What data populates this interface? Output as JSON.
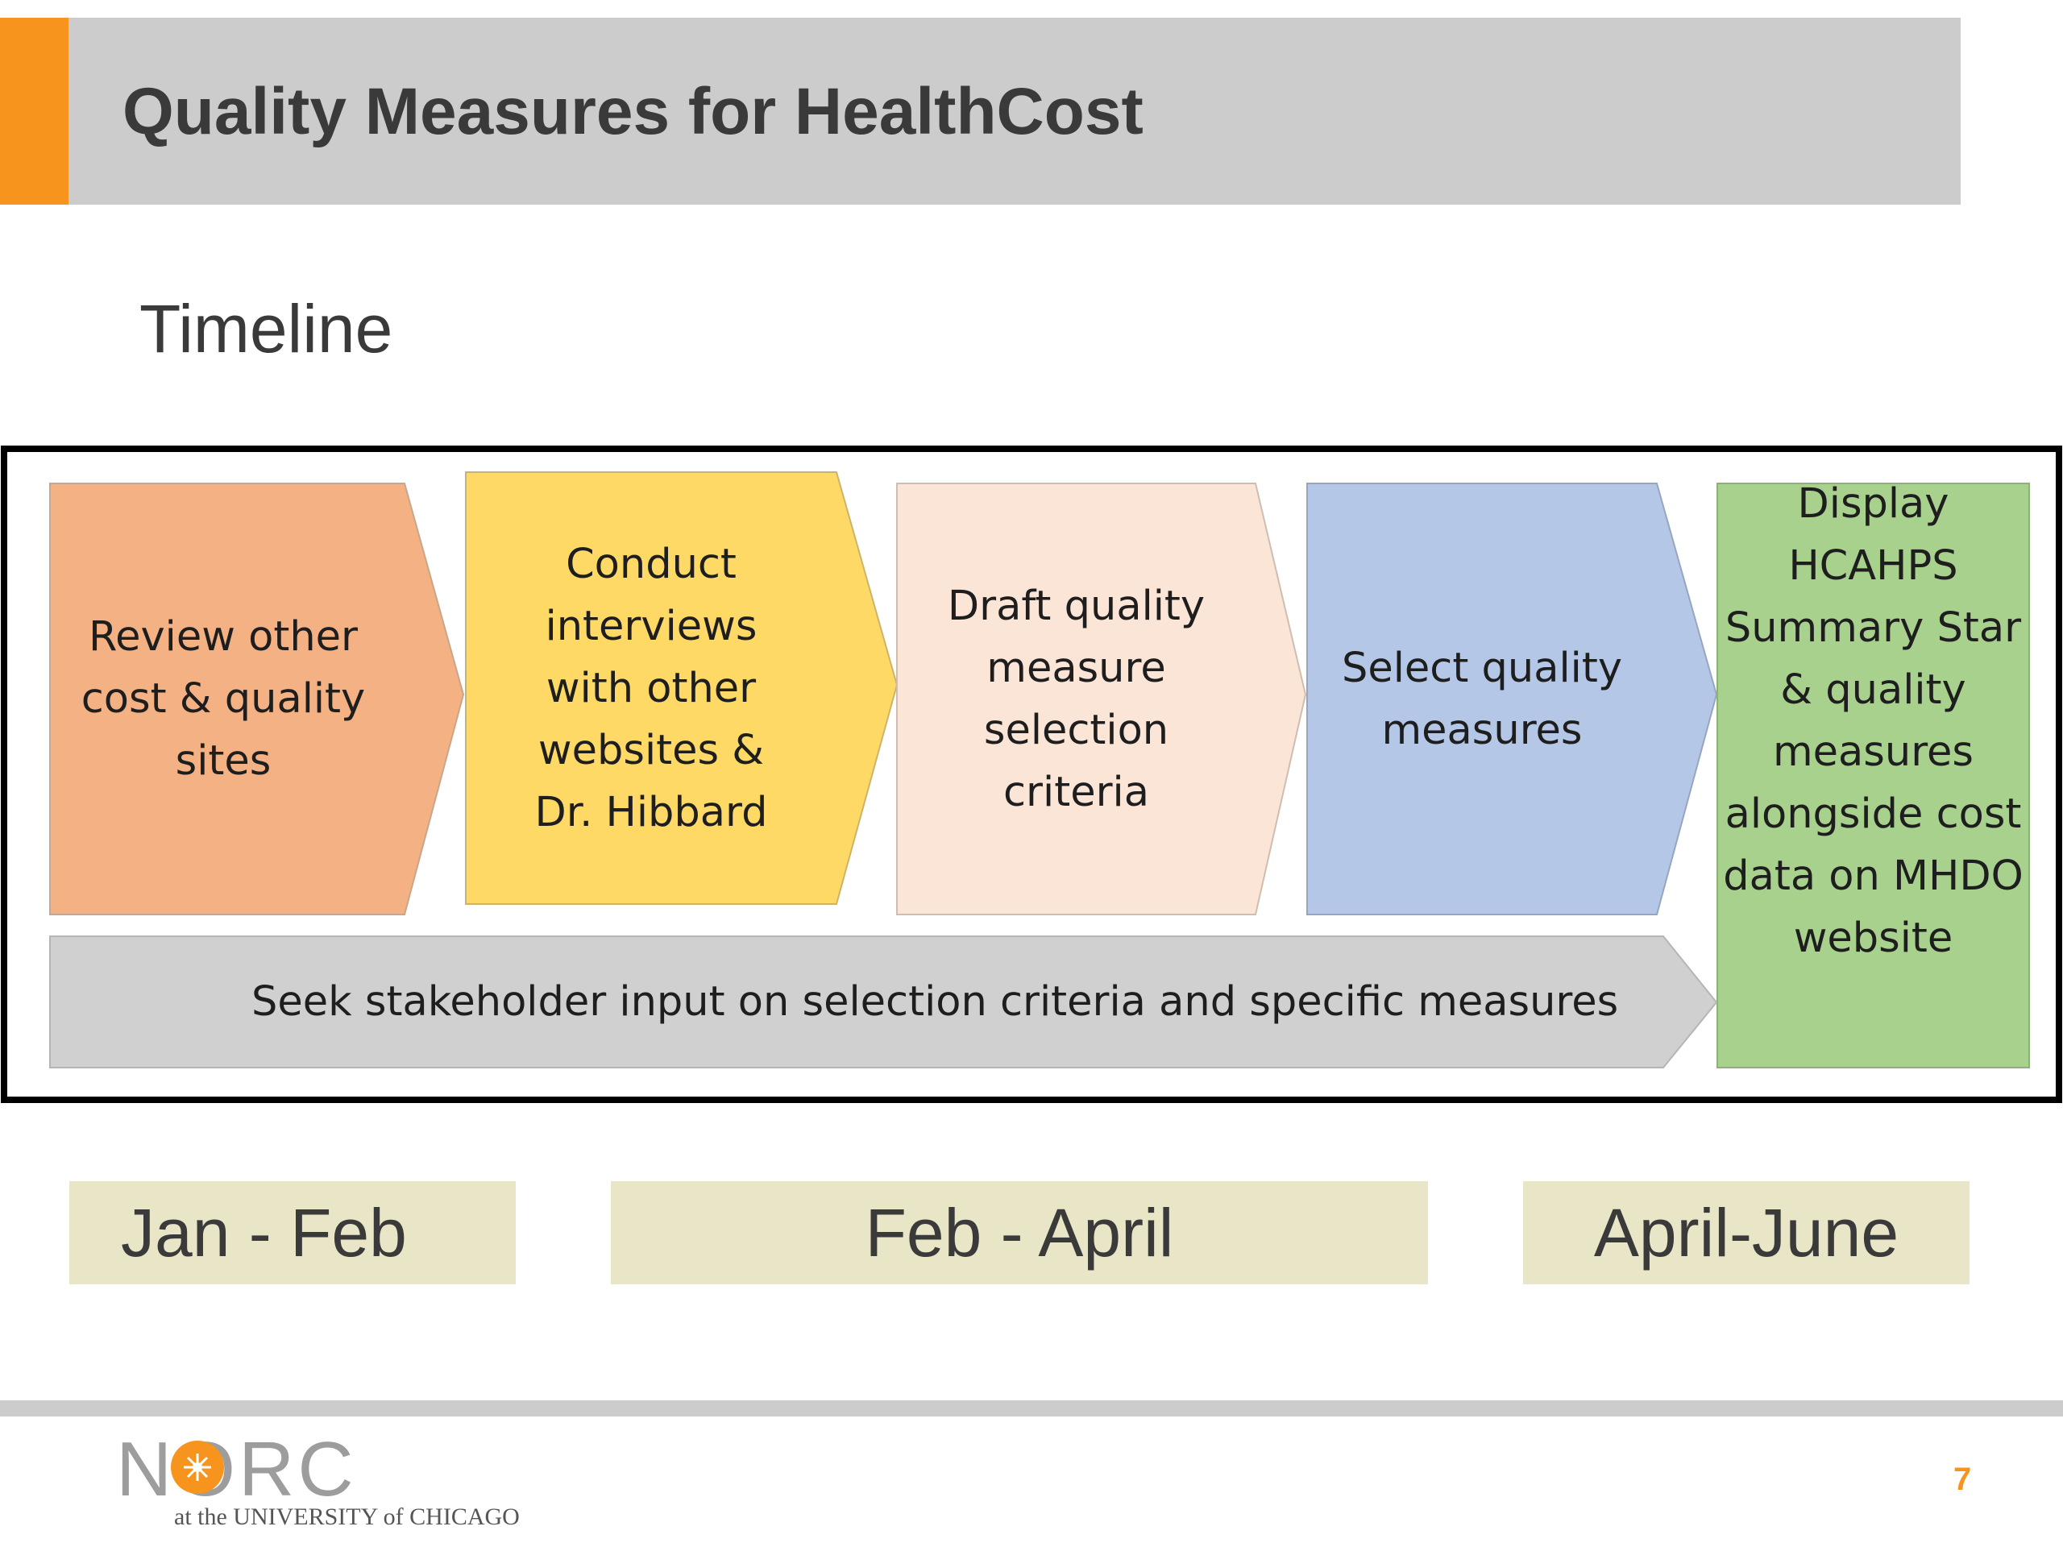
{
  "colors": {
    "accent": "#f7941d",
    "header_band": "#cccccc",
    "step_1": "#f4b183",
    "step_2": "#ffd966",
    "step_3": "#fbe5d6",
    "step_4": "#b4c7e7",
    "step_5": "#a9d18e",
    "stakeholder_bar": "#d0d0d0",
    "period_box": "#e8e6c7"
  },
  "slide": {
    "title": "Quality Measures for HealthCost",
    "subtitle": "Timeline"
  },
  "timeline": {
    "steps": [
      {
        "label": "Review other\ncost & quality\nsites"
      },
      {
        "label": "Conduct interviews\nwith other\nwebsites &\nDr. Hibbard"
      },
      {
        "label": "Draft quality\nmeasure selection\ncriteria"
      },
      {
        "label": "Select quality\nmeasures"
      },
      {
        "label": "Display HCAHPS\nSummary Star\n& quality\nmeasures\nalongside cost\ndata on MHDO\nwebsite"
      }
    ],
    "stakeholder_bar": "Seek stakeholder input on selection criteria and specific measures"
  },
  "periods": [
    "Jan - Feb",
    "Feb - April",
    "April-June"
  ],
  "footer": {
    "logo_text": "NORC",
    "logo_subtext": "at the UNIVERSITY of CHICAGO",
    "page_number": "7"
  }
}
